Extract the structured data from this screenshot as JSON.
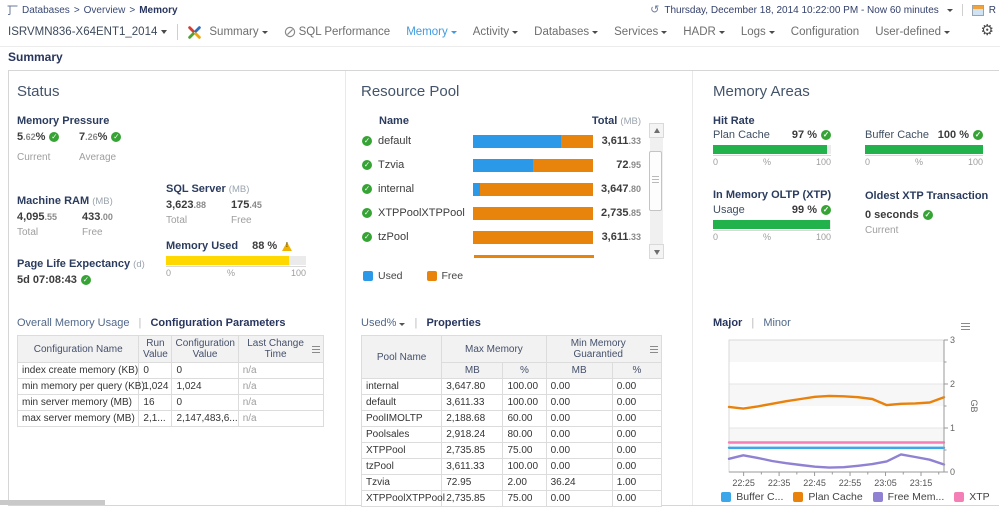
{
  "topbar": {
    "breadcrumb": {
      "path": [
        "Databases",
        "Overview"
      ],
      "current": "Memory",
      "separator": ">"
    },
    "time_range": "Thursday, December 18, 2014 10:22:00 PM - Now 60 minutes",
    "report_button": "R"
  },
  "nav": {
    "server": "ISRVMN836-X64ENT1_2014",
    "items": [
      {
        "label": "Summary",
        "dropdown": true
      },
      {
        "label": "SQL Performance",
        "dropdown": false,
        "icon": "gauge-icon"
      },
      {
        "label": "Memory",
        "dropdown": true,
        "active": true
      },
      {
        "label": "Activity",
        "dropdown": true
      },
      {
        "label": "Databases",
        "dropdown": true
      },
      {
        "label": "Services",
        "dropdown": true
      },
      {
        "label": "HADR",
        "dropdown": true
      },
      {
        "label": "Logs",
        "dropdown": true
      },
      {
        "label": "Configuration",
        "dropdown": false
      },
      {
        "label": "User-defined",
        "dropdown": true
      }
    ]
  },
  "page_title": "Summary",
  "status": {
    "title": "Status",
    "memory_pressure": {
      "label": "Memory Pressure",
      "current": "5.62%",
      "average": "7.26%",
      "current_label": "Current",
      "average_label": "Average"
    },
    "machine_ram": {
      "label": "Machine RAM",
      "unit": "(MB)",
      "total": "4,095.55",
      "free": "433.00",
      "total_label": "Total",
      "free_label": "Free"
    },
    "sql_server": {
      "label": "SQL Server",
      "unit": "(MB)",
      "total": "3,623.88",
      "free": "175.45",
      "total_label": "Total",
      "free_label": "Free"
    },
    "memory_used": {
      "label": "Memory Used",
      "value": "88 %",
      "percent": 88,
      "scale_min": "0",
      "scale_mid": "%",
      "scale_max": "100"
    },
    "page_life_expectancy": {
      "label": "Page Life Expectancy",
      "unit": "(d)",
      "value": "5d 07:08:43"
    },
    "tabs": [
      {
        "label": "Overall Memory Usage",
        "active": false
      },
      {
        "label": "Configuration Parameters",
        "active": true
      }
    ],
    "config_table": {
      "headers": [
        "Configuration Name",
        "Run\nValue",
        "Configuration\nValue",
        "Last Change Time"
      ],
      "rows": [
        [
          "index create memory (KB)",
          "0",
          "0",
          "n/a"
        ],
        [
          "min memory per query (KB)",
          "1,024",
          "1,024",
          "n/a"
        ],
        [
          "min server memory (MB)",
          "16",
          "0",
          "n/a"
        ],
        [
          "max server memory (MB)",
          "2,1...",
          "2,147,483,6...",
          "n/a"
        ]
      ]
    }
  },
  "resource_pool": {
    "title": "Resource Pool",
    "name_header": "Name",
    "total_header": "Total",
    "total_unit": "(MB)",
    "pools": [
      {
        "name": "default",
        "used_pct": 73,
        "total": "3,611.33"
      },
      {
        "name": "Tzvia",
        "used_pct": 50,
        "total": "72.95"
      },
      {
        "name": "internal",
        "used_pct": 6,
        "total": "3,647.80"
      },
      {
        "name": "XTPPoolXTPPool",
        "used_pct": 0,
        "total": "2,735.85"
      },
      {
        "name": "tzPool",
        "used_pct": 0,
        "total": "3,611.33"
      }
    ],
    "legend": [
      {
        "label": "Used",
        "color": "#2b99e8"
      },
      {
        "label": "Free",
        "color": "#e8830c"
      }
    ],
    "tabs": [
      {
        "label": "Used%",
        "active": false,
        "dropdown": true
      },
      {
        "label": "Properties",
        "active": true
      }
    ],
    "properties_table": {
      "col_pool": "Pool Name",
      "group_max": "Max Memory",
      "group_min": "Min Memory Guarantied",
      "sub_headers": [
        "MB",
        "%",
        "MB",
        "%"
      ],
      "rows": [
        [
          "internal",
          "3,647.80",
          "100.00",
          "0.00",
          "0.00"
        ],
        [
          "default",
          "3,611.33",
          "100.00",
          "0.00",
          "0.00"
        ],
        [
          "PoolIMOLTP",
          "2,188.68",
          "60.00",
          "0.00",
          "0.00"
        ],
        [
          "Poolsales",
          "2,918.24",
          "80.00",
          "0.00",
          "0.00"
        ],
        [
          "XTPPool",
          "2,735.85",
          "75.00",
          "0.00",
          "0.00"
        ],
        [
          "tzPool",
          "3,611.33",
          "100.00",
          "0.00",
          "0.00"
        ],
        [
          "Tzvia",
          "72.95",
          "2.00",
          "36.24",
          "1.00"
        ],
        [
          "XTPPoolXTPPool",
          "2,735.85",
          "75.00",
          "0.00",
          "0.00"
        ]
      ]
    }
  },
  "memory_areas": {
    "title": "Memory Areas",
    "hit_rate_label": "Hit Rate",
    "gauges": [
      {
        "label": "Plan Cache",
        "value": "97 %",
        "percent": 97
      },
      {
        "label": "Buffer Cache",
        "value": "100 %",
        "percent": 100
      }
    ],
    "xtp_label": "In Memory OLTP (XTP)",
    "xtp_gauge": {
      "label": "Usage",
      "value": "99 %",
      "percent": 99
    },
    "scale": {
      "min": "0",
      "mid": "%",
      "max": "100"
    },
    "oldest_xtp": {
      "label": "Oldest XTP Transaction",
      "value": "0 seconds",
      "sublabel": "Current"
    },
    "tabs": [
      {
        "label": "Major",
        "active": true
      },
      {
        "label": "Minor",
        "active": false
      }
    ]
  },
  "chart_data": {
    "type": "line",
    "title": "",
    "xlabel": "",
    "ylabel": "GB",
    "ylim": [
      0,
      3
    ],
    "yticks": [
      0,
      1,
      2,
      3
    ],
    "y_minor_step": 0.5,
    "grid": true,
    "legend_position": "bottom",
    "xticklabels": [
      "22:25",
      "22:35",
      "22:45",
      "22:55",
      "23:05",
      "23:15"
    ],
    "series": [
      {
        "name": "Buffer C...",
        "color": "#3ba6ea",
        "values": [
          0.55,
          0.55,
          0.55,
          0.55,
          0.55,
          0.55,
          0.55,
          0.55,
          0.55,
          0.55,
          0.55,
          0.55,
          0.55,
          0.55,
          0.55,
          0.55
        ]
      },
      {
        "name": "Plan Cache",
        "color": "#e8820c",
        "values": [
          1.48,
          1.44,
          1.49,
          1.55,
          1.61,
          1.66,
          1.71,
          1.73,
          1.72,
          1.7,
          1.66,
          1.52,
          1.55,
          1.56,
          1.58,
          1.7
        ]
      },
      {
        "name": "Free Mem...",
        "color": "#9181d3",
        "values": [
          0.3,
          0.38,
          0.32,
          0.25,
          0.2,
          0.16,
          0.12,
          0.1,
          0.11,
          0.14,
          0.18,
          0.24,
          0.4,
          0.34,
          0.28,
          0.17
        ]
      },
      {
        "name": "XTP",
        "color": "#f47fb6",
        "values": [
          0.67,
          0.67,
          0.67,
          0.67,
          0.67,
          0.67,
          0.67,
          0.67,
          0.67,
          0.67,
          0.67,
          0.67,
          0.67,
          0.67,
          0.67,
          0.67
        ]
      }
    ]
  }
}
